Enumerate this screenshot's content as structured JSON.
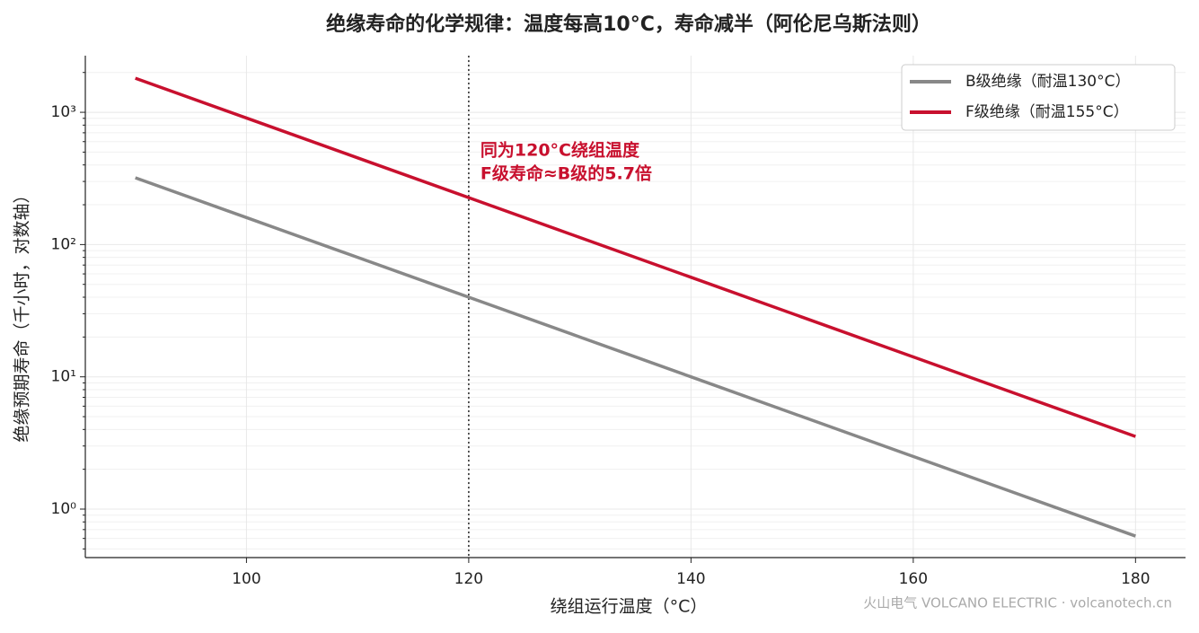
{
  "chart_data": {
    "type": "line",
    "title": "绝缘寿命的化学规律：温度每高10°C，寿命减半（阿伦尼乌斯法则）",
    "x_label": "绕组运行温度（°C）",
    "y_label": "绝缘预期寿命（千小时，对数轴）",
    "x": [
      90,
      100,
      110,
      120,
      130,
      140,
      150,
      160,
      170,
      180
    ],
    "series": [
      {
        "name": "B级绝缘（耐温130°C）",
        "color": "#888888",
        "values": [
          320,
          160,
          80,
          40,
          20,
          10,
          5,
          2.5,
          1.25,
          0.625
        ]
      },
      {
        "name": "F级绝缘（耐温155°C）",
        "color": "#c8102e",
        "values": [
          1810.2,
          905.1,
          452.5,
          226.3,
          113.1,
          56.57,
          28.28,
          14.14,
          7.07,
          3.54
        ]
      }
    ],
    "xlim": [
      85.5,
      184.5
    ],
    "xticks": [
      100,
      120,
      140,
      160,
      180
    ],
    "ylim": [
      0.43,
      2680
    ],
    "yscale": "log",
    "yticks": [
      {
        "value": 1,
        "label": "10⁰"
      },
      {
        "value": 10,
        "label": "10¹"
      },
      {
        "value": 100,
        "label": "10²"
      },
      {
        "value": 1000,
        "label": "10³"
      }
    ],
    "yminorticks": [
      0.5,
      0.6,
      0.7,
      0.8,
      0.9,
      2,
      3,
      4,
      5,
      6,
      7,
      8,
      9,
      20,
      30,
      40,
      50,
      60,
      70,
      80,
      90,
      200,
      300,
      400,
      500,
      600,
      700,
      800,
      900,
      2000
    ],
    "grid": true,
    "vline": 120,
    "annotation": [
      "同为120°C绕组温度",
      "F级寿命≈B级的5.7倍"
    ],
    "annotation_color": "#c8102e",
    "legend": "upper right",
    "watermark": "火山电气 VOLCANO ELECTRIC · volcanotech.cn"
  }
}
